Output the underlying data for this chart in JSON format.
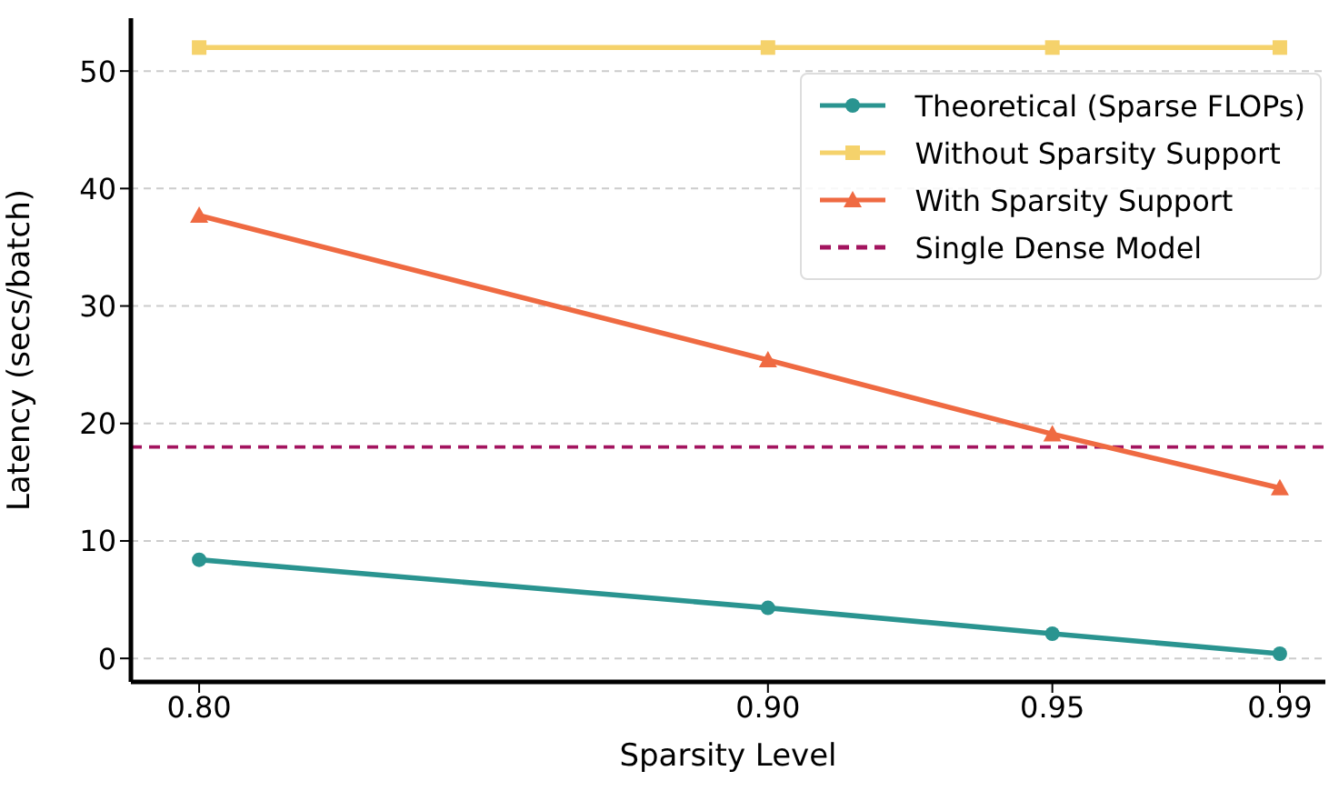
{
  "chart_data": {
    "type": "line",
    "xlabel": "Sparsity Level",
    "ylabel": "Latency (secs/batch)",
    "x": [
      0.8,
      0.9,
      0.95,
      0.99
    ],
    "xlim": [
      0.788,
      0.998
    ],
    "xticks": [
      {
        "value": 0.8,
        "label": "0.80"
      },
      {
        "value": 0.9,
        "label": "0.90"
      },
      {
        "value": 0.95,
        "label": "0.95"
      },
      {
        "value": 0.99,
        "label": "0.99"
      }
    ],
    "ylim": [
      -2,
      54.5
    ],
    "yticks": [
      0,
      10,
      20,
      30,
      40,
      50
    ],
    "series": [
      {
        "name": "Theoretical (Sparse FLOPs)",
        "color": "#2a9490",
        "marker": "circle",
        "values": [
          8.4,
          4.3,
          2.1,
          0.4
        ]
      },
      {
        "name": "Without Sparsity Support",
        "color": "#f5d26b",
        "marker": "square",
        "values": [
          52,
          52,
          52,
          52
        ]
      },
      {
        "name": "With Sparsity Support",
        "color": "#ef6a42",
        "marker": "triangle",
        "values": [
          37.7,
          25.4,
          19.1,
          14.5
        ]
      }
    ],
    "ref_lines": [
      {
        "axis": "y",
        "value": 18,
        "label": "Single Dense Model",
        "color": "#a3145f",
        "line_style": "dashed"
      }
    ],
    "grid": "y",
    "legend": "top right",
    "line_style": "solid"
  }
}
